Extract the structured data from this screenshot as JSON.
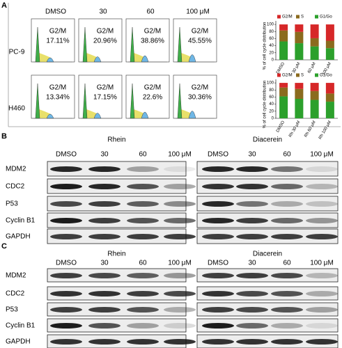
{
  "panel_a": {
    "label": "A",
    "doses": [
      "DMSO",
      "30",
      "60",
      "100 μM"
    ],
    "rows": [
      {
        "cell_line": "PC-9",
        "cells": [
          {
            "phase": "G2/M",
            "percent": "17.11%"
          },
          {
            "phase": "G2/M",
            "percent": "20.96%"
          },
          {
            "phase": "G2/M",
            "percent": "38.86%"
          },
          {
            "phase": "G2/M",
            "percent": "45.55%"
          }
        ]
      },
      {
        "cell_line": "H460",
        "cells": [
          {
            "phase": "G2/M",
            "percent": "13.34%"
          },
          {
            "phase": "G2/M",
            "percent": "17.15%"
          },
          {
            "phase": "G2/M",
            "percent": "22.6%"
          },
          {
            "phase": "G2/M",
            "percent": "30.36%"
          }
        ]
      }
    ]
  },
  "chart_data": [
    {
      "type": "bar",
      "stacked": true,
      "ylabel": "% of cell cycle distribution",
      "categories": [
        "DMSO",
        "30 μM",
        "60 μM",
        "100 μM"
      ],
      "series": [
        {
          "name": "G1/Go",
          "color": "#2ca02c",
          "values": [
            52,
            47,
            38,
            33
          ]
        },
        {
          "name": "S",
          "color": "#8b6b1e",
          "values": [
            31,
            32,
            23,
            21
          ]
        },
        {
          "name": "G2/M",
          "color": "#d62728",
          "values": [
            17,
            21,
            39,
            46
          ]
        }
      ],
      "legend_order": [
        2,
        1,
        0
      ],
      "ylim": [
        0,
        110
      ],
      "yticks": [
        0,
        20,
        40,
        60,
        80,
        100
      ]
    },
    {
      "type": "bar",
      "stacked": true,
      "ylabel": "% of cell cycle distribution",
      "categories": [
        "DMSO",
        "Rh 30 μM",
        "Rh 60 μM",
        "Rh 100 μM"
      ],
      "series": [
        {
          "name": "G1/Go",
          "color": "#2ca02c",
          "values": [
            62,
            55,
            52,
            47
          ]
        },
        {
          "name": "S",
          "color": "#8b6b1e",
          "values": [
            25,
            28,
            25,
            23
          ]
        },
        {
          "name": "G2/M",
          "color": "#d62728",
          "values": [
            13,
            17,
            23,
            30
          ]
        }
      ],
      "legend_order": [
        2,
        1,
        0
      ],
      "ylim": [
        0,
        110
      ],
      "yticks": [
        0,
        20,
        40,
        60,
        80,
        100
      ]
    }
  ],
  "panel_b": {
    "label": "B",
    "proteins": [
      "MDM2",
      "CDC2",
      "P53",
      "Cyclin B1",
      "GAPDH"
    ],
    "blots": [
      {
        "treatment": "Rhein",
        "doses": [
          "DMSO",
          "30",
          "60",
          "100 μM"
        ]
      },
      {
        "treatment": "Diacerein",
        "doses": [
          "DMSO",
          "30",
          "60",
          "100 μM"
        ]
      }
    ]
  },
  "panel_c": {
    "label": "C",
    "proteins": [
      "MDM2",
      "CDC2",
      "P53",
      "Cyclin B1",
      "GAPDH"
    ],
    "blots": [
      {
        "treatment": "Rhein",
        "doses": [
          "DMSO",
          "30",
          "60",
          "100 μM"
        ]
      },
      {
        "treatment": "Diacerein",
        "doses": [
          "DMSO",
          "30",
          "60",
          "100 μM"
        ]
      }
    ]
  }
}
